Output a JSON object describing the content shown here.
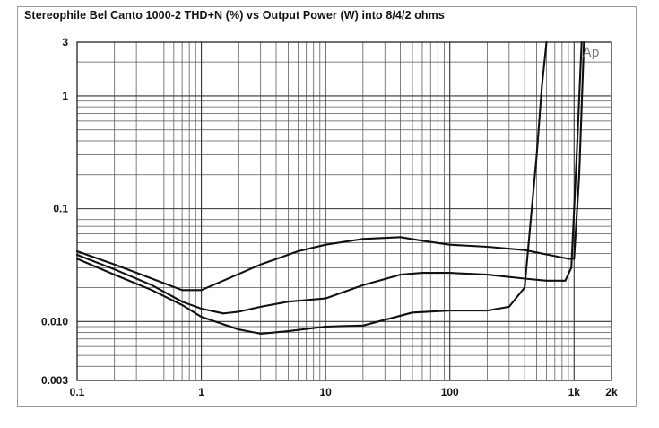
{
  "chart_data": {
    "type": "line",
    "title": "Stereophile  Bel Canto 1000-2  THD+N (%) vs Output Power (W) into 8/4/2 ohms",
    "xlabel": "",
    "ylabel": "",
    "xscale": "log",
    "yscale": "log",
    "xlim": [
      0.1,
      2000
    ],
    "ylim": [
      0.003,
      3
    ],
    "grid": true,
    "legend": "none",
    "watermark": "Ap",
    "x_tick_labels": [
      {
        "value": 0.1,
        "label": "0.1"
      },
      {
        "value": 1,
        "label": "1"
      },
      {
        "value": 10,
        "label": "10"
      },
      {
        "value": 100,
        "label": "100"
      },
      {
        "value": 1000,
        "label": "1k"
      },
      {
        "value": 2000,
        "label": "2k"
      }
    ],
    "y_tick_labels": [
      {
        "value": 0.003,
        "label": "0.003"
      },
      {
        "value": 0.01,
        "label": "0.010"
      },
      {
        "value": 0.1,
        "label": "0.1"
      },
      {
        "value": 1,
        "label": "1"
      },
      {
        "value": 3,
        "label": "3"
      }
    ],
    "series": [
      {
        "x": [
          0.1,
          0.2,
          0.4,
          0.7,
          1.0,
          1.5,
          3,
          6,
          10,
          20,
          40,
          60,
          100,
          200,
          400,
          700,
          900,
          1000,
          1100,
          1200
        ],
        "y": [
          0.042,
          0.032,
          0.024,
          0.019,
          0.019,
          0.023,
          0.032,
          0.042,
          0.048,
          0.054,
          0.056,
          0.052,
          0.048,
          0.046,
          0.043,
          0.038,
          0.036,
          0.036,
          0.2,
          3
        ]
      },
      {
        "x": [
          0.1,
          0.2,
          0.4,
          0.7,
          1.0,
          1.5,
          2,
          3,
          5,
          10,
          20,
          40,
          60,
          100,
          200,
          400,
          600,
          850,
          950,
          1050,
          1150
        ],
        "y": [
          0.039,
          0.029,
          0.021,
          0.015,
          0.013,
          0.0118,
          0.0122,
          0.0135,
          0.015,
          0.016,
          0.021,
          0.026,
          0.027,
          0.027,
          0.026,
          0.024,
          0.023,
          0.023,
          0.03,
          0.3,
          3
        ]
      },
      {
        "x": [
          0.1,
          0.2,
          0.4,
          0.7,
          1.0,
          2,
          3,
          5,
          10,
          20,
          50,
          100,
          200,
          300,
          400,
          500,
          550,
          600
        ],
        "y": [
          0.036,
          0.026,
          0.019,
          0.014,
          0.011,
          0.0085,
          0.0078,
          0.0082,
          0.009,
          0.0092,
          0.012,
          0.0125,
          0.0125,
          0.0135,
          0.02,
          0.3,
          1.2,
          3
        ]
      }
    ]
  }
}
